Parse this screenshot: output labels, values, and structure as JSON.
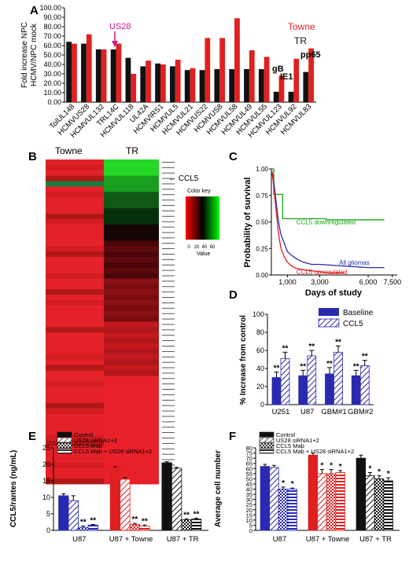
{
  "panels": {
    "a": "A",
    "b": "B",
    "c": "C",
    "d": "D",
    "e": "E",
    "f": "F"
  },
  "colors": {
    "red": "#e02020",
    "black": "#111111",
    "blue": "#2a2ab0",
    "green": "#1aa51a",
    "pink": "#d4148c",
    "gray": "#555555"
  },
  "heatmap": {
    "col_labels": [
      "Towne",
      "TR"
    ],
    "ccl5_label": "CCL5",
    "key_title": "Color key",
    "key_ticks": [
      "0",
      "20",
      "40",
      "60"
    ],
    "key_xlabel": "Value"
  },
  "chart_data": [
    {
      "id": "A",
      "type": "bar",
      "ylabel": "Fold increase NPC HCMV/NPC mock",
      "ylim": [
        0,
        100
      ],
      "yticks": [
        "0.00",
        "10.00",
        "20.00",
        "30.00",
        "40.00",
        "50.00",
        "60.00",
        "70.00",
        "80.00",
        "90.00",
        "100.00"
      ],
      "categories": [
        "TolUL148",
        "HCMVUS28",
        "HCMVUL132",
        "TRL14C",
        "HCMVUL118",
        "UL42A",
        "HCMVIRS1",
        "HCMVUL5",
        "HCMVUL21",
        "HCMVUS22",
        "HCMVUS8",
        "HCMVUL58",
        "HCMVUL49",
        "HCMVUL55",
        "HCMVUL123",
        "HCMVUL92",
        "HCMVUL83"
      ],
      "series": [
        {
          "name": "Towne",
          "color": "#e02020",
          "values": [
            62,
            72,
            56,
            62,
            30,
            44,
            40,
            45,
            36,
            68,
            68,
            89,
            55,
            48,
            28,
            46,
            57
          ]
        },
        {
          "name": "TR",
          "color": "#111111",
          "values": [
            64,
            62,
            56,
            56,
            47,
            38,
            41,
            38,
            34,
            34,
            35,
            35,
            35,
            35,
            11,
            11,
            32
          ]
        }
      ],
      "annotations": [
        "US28",
        "gB",
        "IE1",
        "pp65"
      ]
    },
    {
      "id": "C",
      "type": "line",
      "xlabel": "Days of study",
      "ylabel": "Probability of survival",
      "xlim": [
        0,
        7800
      ],
      "ylim": [
        0,
        1.0
      ],
      "xticks": [
        "1,000",
        "3,000",
        "6,000",
        "7,500"
      ],
      "yticks": [
        "0.00",
        "0.25",
        "0.50",
        "0.75",
        "1.00"
      ],
      "series": [
        {
          "name": "CCL5 downregulated",
          "color": "#1aa51a",
          "x": [
            0,
            150,
            150,
            700,
            700,
            3400,
            3400,
            7000
          ],
          "y": [
            1.0,
            1.0,
            0.76,
            0.76,
            0.53,
            0.53,
            0.52,
            0.52
          ]
        },
        {
          "name": "All gliomas",
          "color": "#2a2ab0",
          "x": [
            0,
            100,
            200,
            300,
            400,
            500,
            600,
            800,
            1000,
            1300,
            1600,
            2000,
            2500,
            3000,
            4000,
            5000,
            6000,
            7000
          ],
          "y": [
            1.0,
            0.93,
            0.82,
            0.68,
            0.55,
            0.45,
            0.38,
            0.3,
            0.22,
            0.18,
            0.15,
            0.12,
            0.1,
            0.1,
            0.09,
            0.08,
            0.07,
            0.07
          ]
        },
        {
          "name": "CCL5 upregulated",
          "color": "#e02020",
          "x": [
            0,
            100,
            200,
            300,
            400,
            500,
            600,
            800,
            1000,
            1300,
            1600,
            2000,
            2500,
            3000,
            3500,
            4000,
            4500
          ],
          "y": [
            1.0,
            0.9,
            0.75,
            0.6,
            0.45,
            0.33,
            0.25,
            0.17,
            0.12,
            0.08,
            0.06,
            0.05,
            0.04,
            0.03,
            0.02,
            0.02,
            0.02
          ]
        }
      ]
    },
    {
      "id": "D",
      "type": "bar",
      "ylabel": "% Increase from control",
      "ylim": [
        0,
        100
      ],
      "yticks": [
        "0",
        "20",
        "40",
        "60",
        "80",
        "100"
      ],
      "categories": [
        "U251",
        "U87",
        "GBM#1",
        "GBM#2"
      ],
      "series": [
        {
          "name": "Baseline",
          "values": [
            30,
            32,
            34,
            32
          ],
          "errors": [
            6,
            6,
            7,
            6
          ]
        },
        {
          "name": "CCL5",
          "values": [
            51,
            54,
            58,
            43
          ],
          "errors": [
            7,
            6,
            7,
            6
          ]
        }
      ],
      "sig_label": "**"
    },
    {
      "id": "E",
      "type": "bar",
      "ylabel": "CCL5/rantes (ng/mL)",
      "ylim": [
        0,
        25
      ],
      "yticks": [
        "0",
        "5",
        "10",
        "15",
        "20",
        "25"
      ],
      "categories": [
        "U87",
        "U87 + Towne",
        "U87 + TR"
      ],
      "legend": [
        "Control",
        "US28 siRNA1+2",
        "CCL5 Mab",
        "CCL5 Mab + US28 siRNA1+2"
      ],
      "values": [
        [
          10.5,
          9.0,
          0.9,
          1.6
        ],
        [
          19.0,
          15.5,
          1.8,
          1.3
        ],
        [
          20.5,
          18.8,
          3.2,
          3.4
        ]
      ],
      "errors": [
        [
          0.6,
          1.5,
          0.4,
          0.2
        ],
        [
          0.3,
          0.5,
          0.3,
          0.3
        ],
        [
          0.3,
          0.3,
          0.3,
          0.3
        ]
      ],
      "group_colors": [
        "#2a2ab0",
        "#e02020",
        "#111111"
      ],
      "sig_label": "**"
    },
    {
      "id": "F",
      "type": "bar",
      "ylabel": "Average cell number",
      "ylim": [
        0,
        80
      ],
      "yticks": [
        "0",
        "5",
        "10",
        "15",
        "20",
        "25",
        "30",
        "35",
        "40",
        "45",
        "50",
        "55",
        "60",
        "65",
        "70",
        "75",
        "80"
      ],
      "categories": [
        "U87",
        "U87 + Towne",
        "U87 + TR"
      ],
      "legend": [
        "Control",
        "US28 siRNA1+2",
        "CCL5 Mab",
        "CCL5 Mab + US28 siRNA1+2"
      ],
      "values": [
        [
          62,
          61,
          40,
          40
        ],
        [
          73,
          55,
          55,
          56
        ],
        [
          70,
          53,
          50,
          48
        ]
      ],
      "errors": [
        [
          2,
          2,
          2,
          1
        ],
        [
          2,
          4,
          4,
          2
        ],
        [
          3,
          3,
          3,
          3
        ]
      ],
      "group_colors": [
        "#2a2ab0",
        "#e02020",
        "#111111"
      ],
      "sig_label": "*"
    }
  ]
}
